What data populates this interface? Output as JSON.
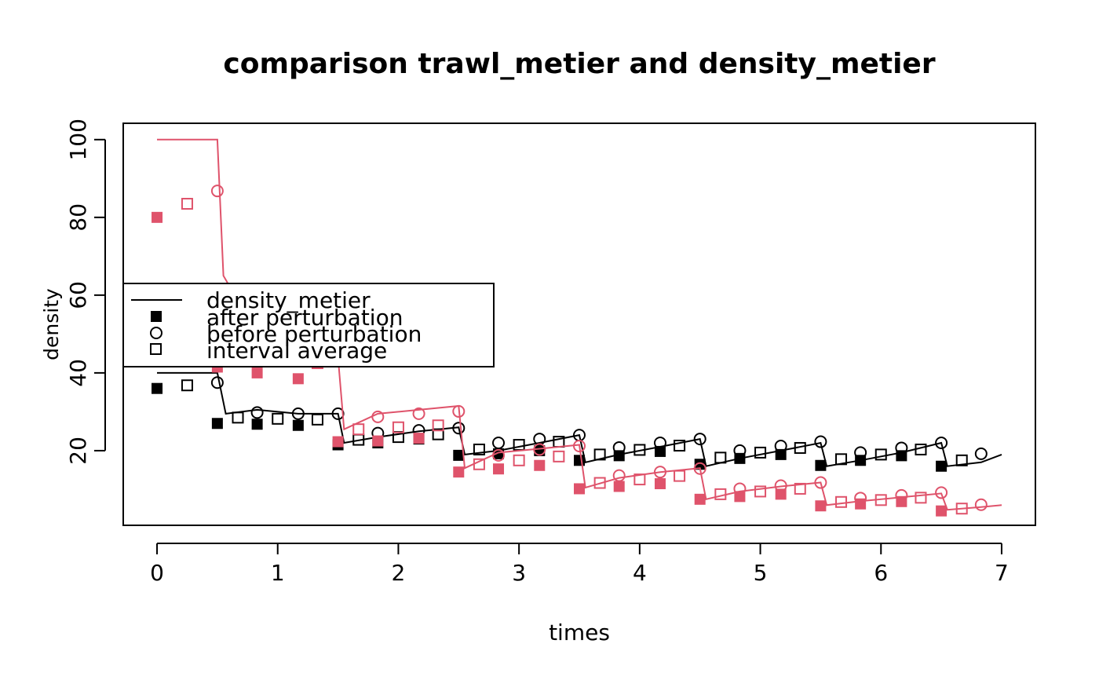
{
  "chart_data": {
    "type": "line",
    "title": "comparison trawl_metier and density_metier",
    "xlabel": "times",
    "ylabel": "density",
    "xlim": [
      -0.28,
      7.28
    ],
    "ylim": [
      0.8,
      104.2
    ],
    "xticks": [
      0,
      1,
      2,
      3,
      4,
      5,
      6,
      7
    ],
    "yticks": [
      20,
      40,
      60,
      80,
      100
    ],
    "grid": false,
    "legend_position": "center-left",
    "colors": {
      "black": "#000000",
      "red": "#DF536B"
    },
    "legend": [
      {
        "label": "density_metier",
        "symbol": "line"
      },
      {
        "label": "after perturbation",
        "symbol": "filled-square"
      },
      {
        "label": "before perturbation",
        "symbol": "open-circle"
      },
      {
        "label": "interval average",
        "symbol": "open-square"
      }
    ],
    "series": [
      {
        "color": "#000000",
        "density_metier": [
          [
            0,
            40
          ],
          [
            0.5,
            40
          ],
          [
            0.57,
            29.5
          ],
          [
            0.83,
            30.5
          ],
          [
            1.17,
            29.5
          ],
          [
            1.5,
            29.5
          ],
          [
            1.55,
            22
          ],
          [
            1.83,
            23.5
          ],
          [
            2.17,
            25
          ],
          [
            2.5,
            26
          ],
          [
            2.55,
            19
          ],
          [
            2.83,
            20
          ],
          [
            3.17,
            22
          ],
          [
            3.5,
            24
          ],
          [
            3.55,
            17
          ],
          [
            3.83,
            19
          ],
          [
            4.17,
            21
          ],
          [
            4.5,
            23
          ],
          [
            4.55,
            16
          ],
          [
            4.83,
            18
          ],
          [
            5.17,
            20
          ],
          [
            5.5,
            22
          ],
          [
            5.55,
            16
          ],
          [
            5.83,
            17.5
          ],
          [
            6.17,
            19.5
          ],
          [
            6.5,
            22
          ],
          [
            6.55,
            16
          ],
          [
            6.83,
            17
          ],
          [
            7,
            19
          ]
        ],
        "after_perturbation": [
          [
            0,
            36
          ],
          [
            0.5,
            27
          ],
          [
            0.83,
            26.8
          ],
          [
            1.17,
            26.5
          ],
          [
            1.5,
            21.5
          ],
          [
            1.83,
            22
          ],
          [
            2.17,
            23
          ],
          [
            2.5,
            18.8
          ],
          [
            2.83,
            19.2
          ],
          [
            3.17,
            20
          ],
          [
            3.5,
            17.5
          ],
          [
            3.83,
            18.7
          ],
          [
            4.17,
            19.8
          ],
          [
            4.5,
            16.5
          ],
          [
            4.83,
            18
          ],
          [
            5.17,
            19
          ],
          [
            5.5,
            16.2
          ],
          [
            5.83,
            17.5
          ],
          [
            6.17,
            18.7
          ],
          [
            6.5,
            16
          ]
        ],
        "before_perturbation": [
          [
            0.5,
            37.5
          ],
          [
            0.83,
            29.8
          ],
          [
            1.17,
            29.5
          ],
          [
            1.5,
            29.5
          ],
          [
            1.83,
            24.5
          ],
          [
            2.17,
            25.2
          ],
          [
            2.5,
            25.8
          ],
          [
            2.83,
            22
          ],
          [
            3.17,
            23
          ],
          [
            3.5,
            24
          ],
          [
            3.83,
            20.8
          ],
          [
            4.17,
            22
          ],
          [
            4.5,
            23
          ],
          [
            4.83,
            20
          ],
          [
            5.17,
            21.2
          ],
          [
            5.5,
            22.3
          ],
          [
            5.83,
            19.5
          ],
          [
            6.17,
            20.7
          ],
          [
            6.5,
            22
          ],
          [
            6.83,
            19.2
          ]
        ],
        "interval_average": [
          [
            0.25,
            36.8
          ],
          [
            0.67,
            28.5
          ],
          [
            1,
            28.2
          ],
          [
            1.33,
            28
          ],
          [
            1.67,
            22.8
          ],
          [
            2,
            23.5
          ],
          [
            2.33,
            24.2
          ],
          [
            2.67,
            20.3
          ],
          [
            3,
            21.5
          ],
          [
            3.33,
            22.3
          ],
          [
            3.67,
            19
          ],
          [
            4,
            20.2
          ],
          [
            4.33,
            21.3
          ],
          [
            4.67,
            18.2
          ],
          [
            5,
            19.5
          ],
          [
            5.33,
            20.7
          ],
          [
            5.67,
            17.8
          ],
          [
            6,
            19
          ],
          [
            6.33,
            20.3
          ],
          [
            6.67,
            17.5
          ]
        ]
      },
      {
        "color": "#DF536B",
        "density_metier": [
          [
            0,
            100
          ],
          [
            0.5,
            100
          ],
          [
            0.55,
            65
          ],
          [
            0.83,
            50
          ],
          [
            1.17,
            46
          ],
          [
            1.5,
            44
          ],
          [
            1.55,
            25.5
          ],
          [
            1.83,
            29.5
          ],
          [
            2.17,
            30.5
          ],
          [
            2.5,
            31.5
          ],
          [
            2.55,
            15.5
          ],
          [
            2.83,
            19.5
          ],
          [
            3.17,
            20.5
          ],
          [
            3.5,
            21.5
          ],
          [
            3.55,
            10.5
          ],
          [
            3.83,
            13
          ],
          [
            4.17,
            14.5
          ],
          [
            4.5,
            15.5
          ],
          [
            4.55,
            7.5
          ],
          [
            4.83,
            9.5
          ],
          [
            5.17,
            10.8
          ],
          [
            5.5,
            11.8
          ],
          [
            5.55,
            6
          ],
          [
            5.83,
            7
          ],
          [
            6.17,
            8
          ],
          [
            6.5,
            9
          ],
          [
            6.55,
            4.8
          ],
          [
            6.83,
            5.5
          ],
          [
            7,
            6
          ]
        ],
        "after_perturbation": [
          [
            0,
            80
          ],
          [
            0.5,
            41.5
          ],
          [
            0.83,
            40
          ],
          [
            1.17,
            38.5
          ],
          [
            1.5,
            22.3
          ],
          [
            1.83,
            22.5
          ],
          [
            2.17,
            23.2
          ],
          [
            2.5,
            14.5
          ],
          [
            2.83,
            15.3
          ],
          [
            3.17,
            16.2
          ],
          [
            3.5,
            10.2
          ],
          [
            3.83,
            10.8
          ],
          [
            4.17,
            11.5
          ],
          [
            4.5,
            7.5
          ],
          [
            4.83,
            8.2
          ],
          [
            5.17,
            8.8
          ],
          [
            5.5,
            5.8
          ],
          [
            5.83,
            6.3
          ],
          [
            6.17,
            6.9
          ],
          [
            6.5,
            4.5
          ]
        ],
        "before_perturbation": [
          [
            0.5,
            86.8
          ],
          [
            1.83,
            28.7
          ],
          [
            2.17,
            29.5
          ],
          [
            2.5,
            30.1
          ],
          [
            2.83,
            18.8
          ],
          [
            3.17,
            20.3
          ],
          [
            3.5,
            21.2
          ],
          [
            3.83,
            13.6
          ],
          [
            4.17,
            14.5
          ],
          [
            4.5,
            15.4
          ],
          [
            4.83,
            10.2
          ],
          [
            5.17,
            11
          ],
          [
            5.5,
            11.8
          ],
          [
            5.83,
            7.8
          ],
          [
            6.17,
            8.5
          ],
          [
            6.5,
            9.2
          ],
          [
            6.83,
            6.1
          ]
        ],
        "interval_average": [
          [
            0.25,
            83.5
          ],
          [
            1.33,
            42.5
          ],
          [
            1.67,
            25.5
          ],
          [
            2,
            26
          ],
          [
            2.33,
            26.5
          ],
          [
            2.67,
            16.5
          ],
          [
            3,
            17.5
          ],
          [
            3.33,
            18.5
          ],
          [
            3.67,
            11.7
          ],
          [
            4,
            12.6
          ],
          [
            4.33,
            13.5
          ],
          [
            4.67,
            8.8
          ],
          [
            5,
            9.5
          ],
          [
            5.33,
            10.2
          ],
          [
            5.67,
            6.8
          ],
          [
            6,
            7.3
          ],
          [
            6.33,
            7.9
          ],
          [
            6.67,
            5.1
          ]
        ]
      }
    ]
  }
}
